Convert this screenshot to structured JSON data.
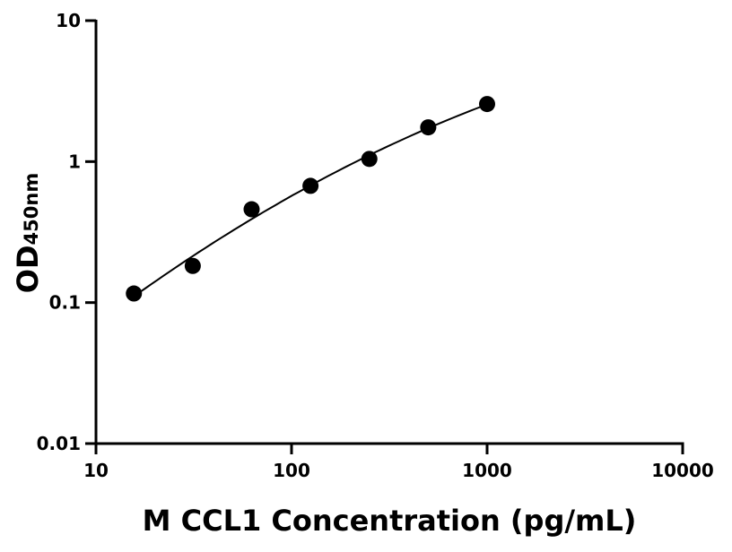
{
  "chart_data": {
    "type": "scatter",
    "title": "",
    "xlabel": "M CCL1 Concentration (pg/mL)",
    "ylabel": "OD",
    "ylabel_subscript": "450nm",
    "xscale": "log",
    "yscale": "log",
    "xlim": [
      10,
      10000
    ],
    "ylim": [
      0.01,
      10
    ],
    "x_ticks": [
      "10",
      "100",
      "1000",
      "10000"
    ],
    "y_ticks": [
      "0.01",
      "0.1",
      "1",
      "10"
    ],
    "grid": false,
    "fit_curve": true,
    "series": [
      {
        "x": [
          15.625,
          31.25,
          62.5,
          125,
          250,
          500,
          1000
        ],
        "y": [
          0.116,
          0.182,
          0.459,
          0.673,
          1.045,
          1.75,
          2.56
        ]
      }
    ],
    "colors": {
      "points": "#000000",
      "line": "#000000"
    }
  }
}
